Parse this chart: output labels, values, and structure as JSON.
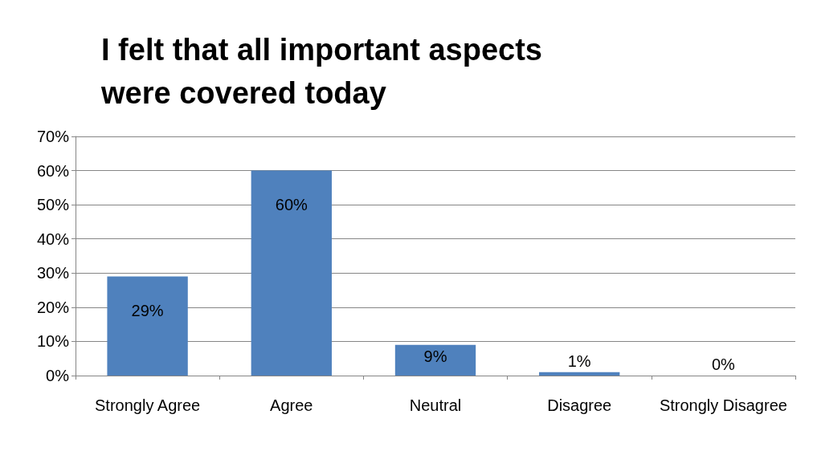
{
  "chart_data": {
    "type": "bar",
    "title": "I felt that all important aspects were covered today",
    "categories": [
      "Strongly Agree",
      "Agree",
      "Neutral",
      "Disagree",
      "Strongly Disagree"
    ],
    "values": [
      29,
      60,
      9,
      1,
      0
    ],
    "value_labels": [
      "29%",
      "60%",
      "9%",
      "1%",
      "0%"
    ],
    "color": "#4f81bd",
    "ylim": [
      0,
      70
    ],
    "yticks": [
      {
        "value": 0,
        "label": "0%"
      },
      {
        "value": 10,
        "label": "10%"
      },
      {
        "value": 20,
        "label": "20%"
      },
      {
        "value": 30,
        "label": "30%"
      },
      {
        "value": 40,
        "label": "40%"
      },
      {
        "value": 50,
        "label": "50%"
      },
      {
        "value": 60,
        "label": "60%"
      },
      {
        "value": 70,
        "label": "70%"
      }
    ],
    "grid": "y",
    "legend": false
  }
}
